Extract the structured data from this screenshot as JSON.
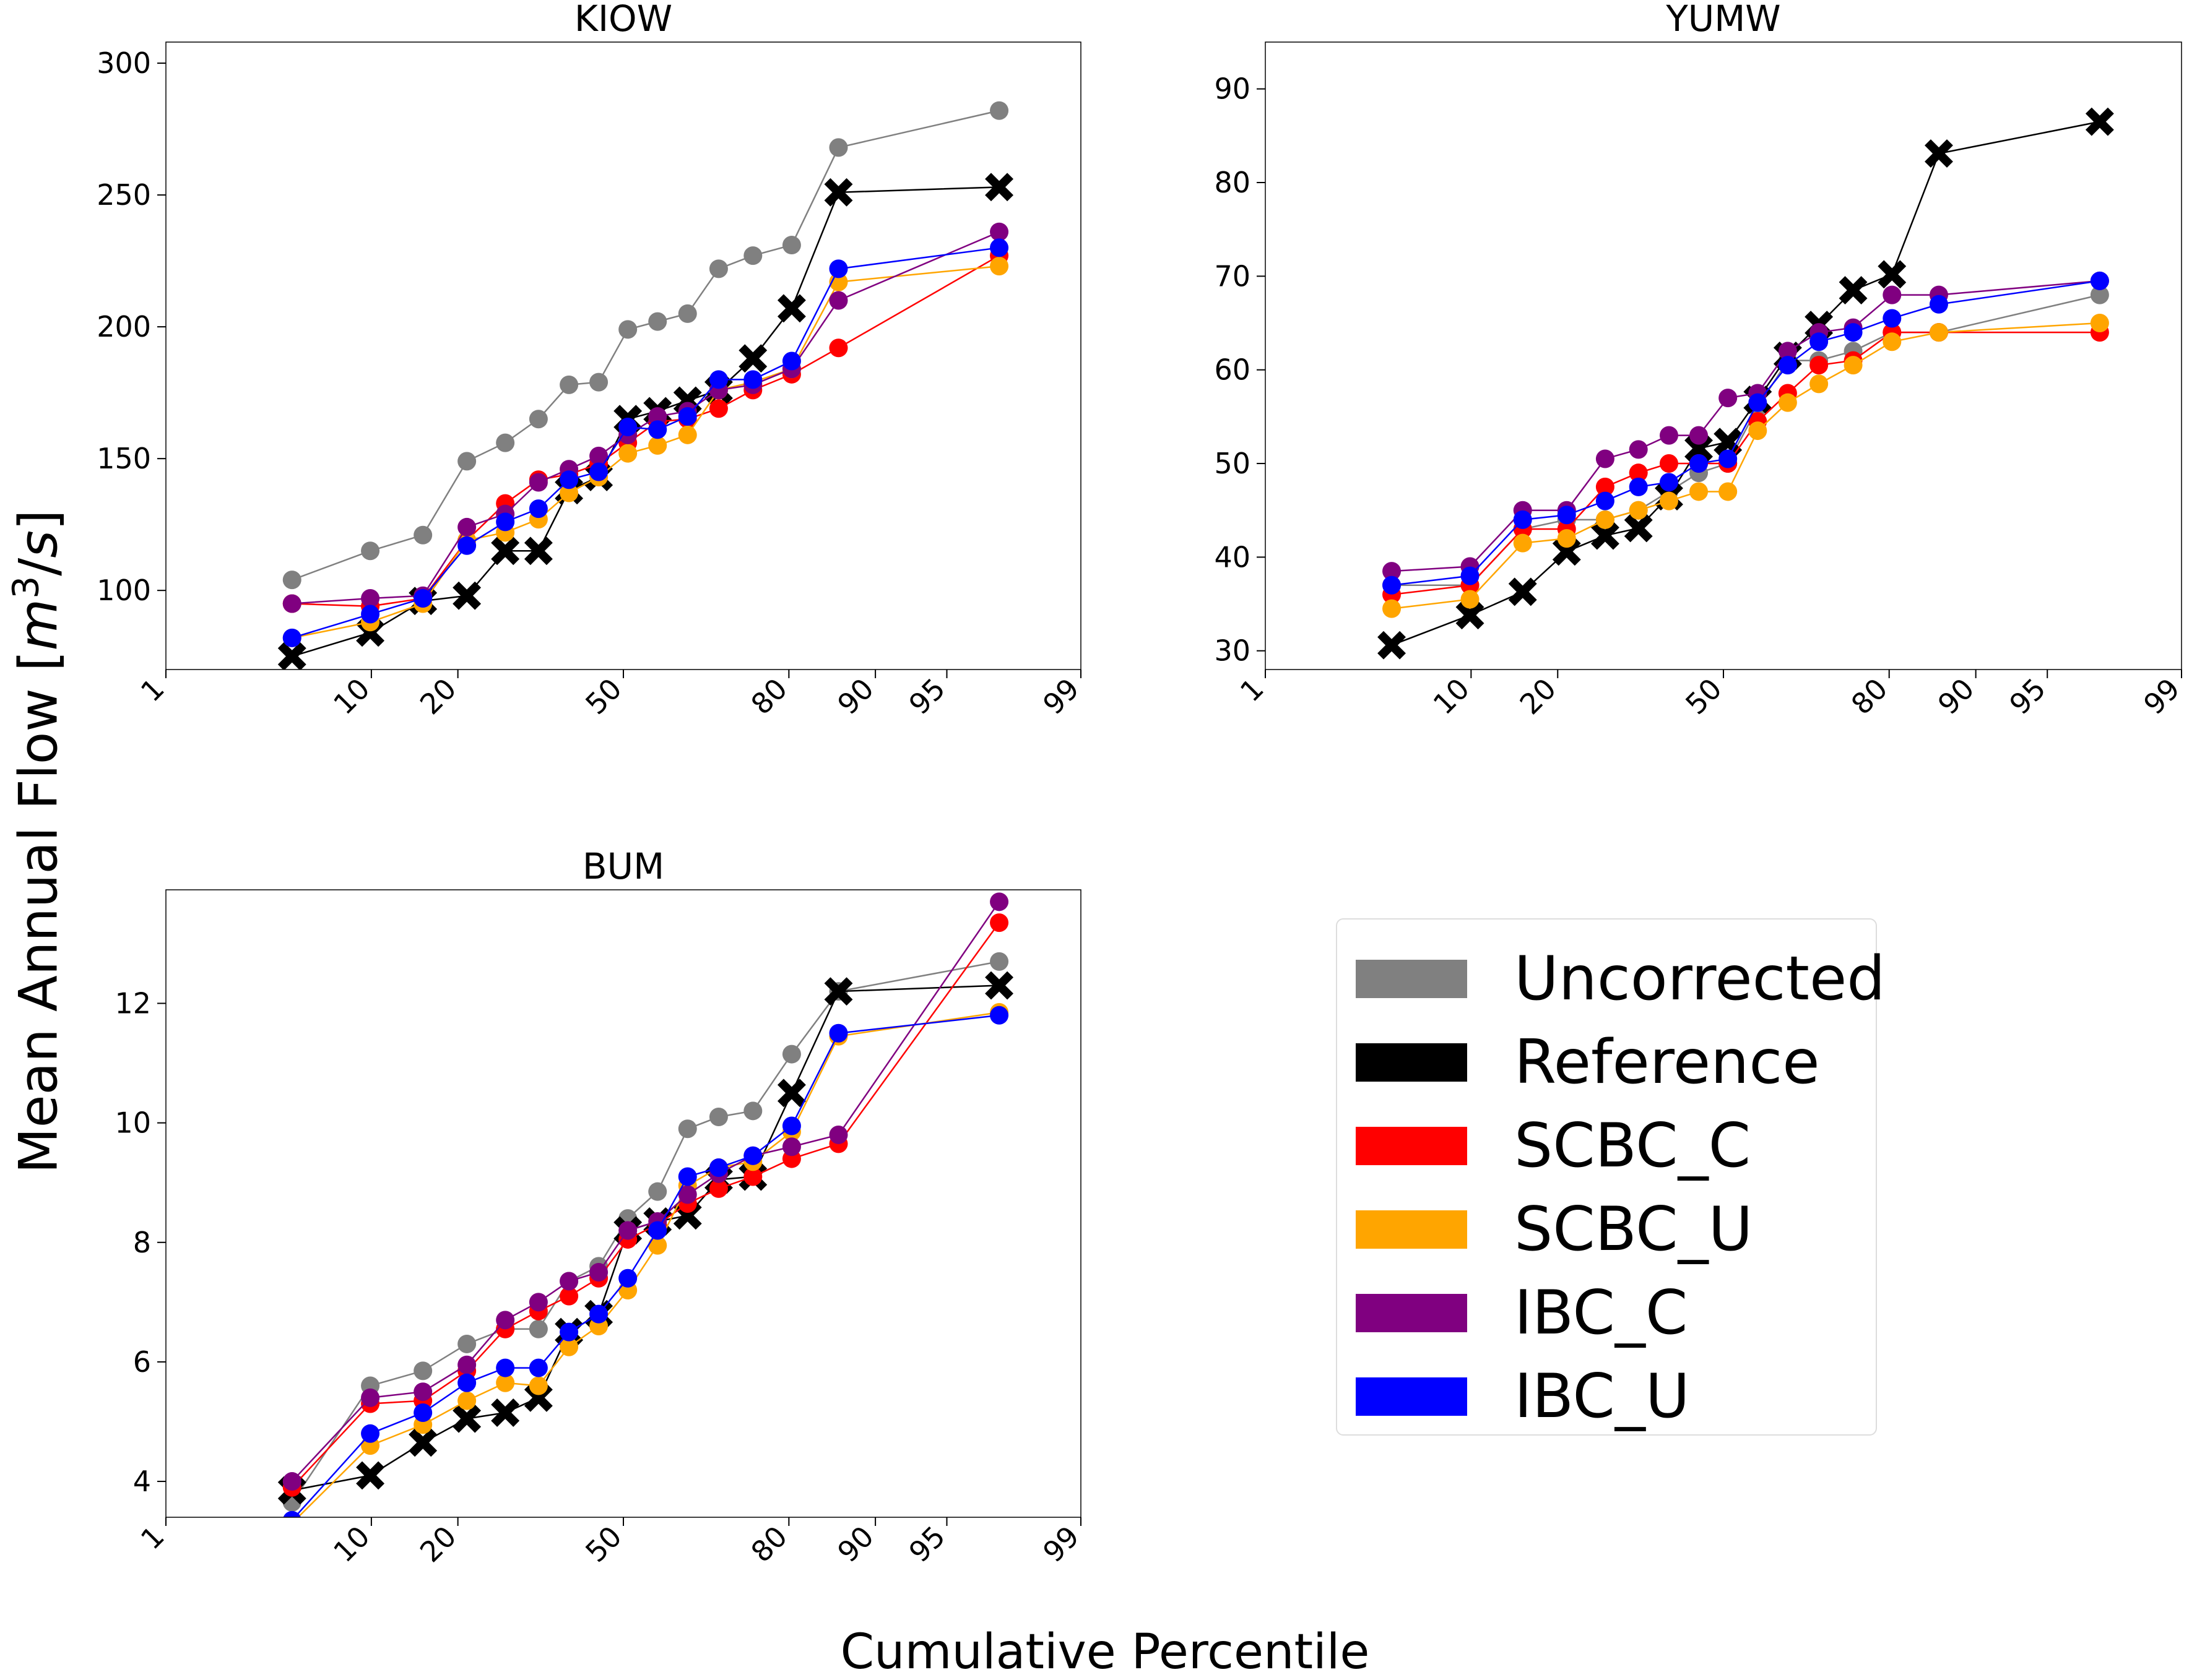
{
  "figure": {
    "xlabel": "Cumulative Percentile",
    "ylabel_main": "Mean Annual Flow [",
    "ylabel_m": "m",
    "ylabel_exp": "3",
    "ylabel_tail": "/",
    "ylabel_s": "s",
    "ylabel_end": "]"
  },
  "legend": {
    "placement": "lower-right",
    "items": [
      {
        "label": "Uncorrected",
        "color": "#808080"
      },
      {
        "label": "Reference",
        "color": "#000000"
      },
      {
        "label": "SCBC_C",
        "color": "#ff0000"
      },
      {
        "label": "SCBC_U",
        "color": "#ffa500"
      },
      {
        "label": "IBC_C",
        "color": "#800080"
      },
      {
        "label": "IBC_U",
        "color": "#0000ff"
      }
    ]
  },
  "chart_data": [
    {
      "type": "line",
      "title": "KIOW",
      "x_scale": "normal-probability",
      "xlim": [
        1,
        99
      ],
      "xticks": [
        1,
        10,
        20,
        50,
        80,
        90,
        95,
        99
      ],
      "xtick_labels": [
        "1",
        "10",
        "20",
        "50",
        "80",
        "90",
        "95",
        "99"
      ],
      "ylim": [
        70,
        308
      ],
      "yticks": [
        100,
        150,
        200,
        250,
        300
      ],
      "ytick_labels": [
        "100",
        "150",
        "200",
        "250",
        "300"
      ],
      "x": [
        4.6,
        9.9,
        15.4,
        21.3,
        27.4,
        33.3,
        39.1,
        45.0,
        50.9,
        56.9,
        62.8,
        68.6,
        74.5,
        80.4,
        86.3,
        92.1,
        97.2
      ],
      "series": [
        {
          "name": "Uncorrected",
          "color": "#808080",
          "marker": "o",
          "values": [
            104,
            115,
            121,
            149,
            156,
            165,
            178,
            179,
            199,
            202,
            205,
            222,
            227,
            231,
            268,
            null,
            282
          ]
        },
        {
          "name": "Reference",
          "color": "#000000",
          "marker": "x",
          "values": [
            75,
            84,
            96,
            98,
            115,
            115,
            138,
            143,
            165,
            168,
            172,
            176,
            188,
            207,
            251,
            null,
            253
          ]
        },
        {
          "name": "SCBC_C",
          "color": "#ff0000",
          "marker": "o",
          "values": [
            95,
            94,
            97,
            119,
            133,
            142,
            144,
            148,
            156,
            164,
            165,
            169,
            176,
            182,
            192,
            null,
            227
          ]
        },
        {
          "name": "SCBC_U",
          "color": "#ffa500",
          "marker": "o",
          "values": [
            82,
            88,
            95,
            119,
            122,
            127,
            137,
            143,
            152,
            155,
            159,
            176,
            179,
            184,
            217,
            null,
            223
          ]
        },
        {
          "name": "IBC_C",
          "color": "#800080",
          "marker": "o",
          "values": [
            95,
            97,
            98,
            124,
            129,
            141,
            146,
            151,
            159,
            166,
            168,
            176,
            178,
            184,
            210,
            null,
            236
          ]
        },
        {
          "name": "IBC_U",
          "color": "#0000ff",
          "marker": "o",
          "values": [
            82,
            91,
            97,
            117,
            126,
            131,
            142,
            145,
            162,
            161,
            166,
            180,
            180,
            187,
            222,
            null,
            230
          ]
        }
      ]
    },
    {
      "type": "line",
      "title": "YUMW",
      "x_scale": "normal-probability",
      "xlim": [
        1,
        99
      ],
      "xticks": [
        1,
        10,
        20,
        50,
        80,
        90,
        95,
        99
      ],
      "xtick_labels": [
        "1",
        "10",
        "20",
        "50",
        "80",
        "90",
        "95",
        "99"
      ],
      "ylim": [
        28,
        95
      ],
      "yticks": [
        30,
        40,
        50,
        60,
        70,
        80,
        90
      ],
      "ytick_labels": [
        "30",
        "40",
        "50",
        "60",
        "70",
        "80",
        "90"
      ],
      "x": [
        4.6,
        9.9,
        15.4,
        21.3,
        27.4,
        33.3,
        39.1,
        45.0,
        50.9,
        56.9,
        62.8,
        68.6,
        74.5,
        80.4,
        86.3,
        92.1,
        97.2
      ],
      "series": [
        {
          "name": "Uncorrected",
          "color": "#808080",
          "marker": "o",
          "values": [
            37,
            37,
            43,
            44,
            44,
            45,
            47,
            49,
            50,
            56,
            61,
            61,
            62,
            64,
            64,
            null,
            68
          ]
        },
        {
          "name": "Reference",
          "color": "#000000",
          "marker": "x",
          "values": [
            30.6,
            33.8,
            36.3,
            40.6,
            42.3,
            43.1,
            46.5,
            51.6,
            52.3,
            56.8,
            61.5,
            64.8,
            68.5,
            70.2,
            83.1,
            null,
            86.5
          ]
        },
        {
          "name": "SCBC_C",
          "color": "#ff0000",
          "marker": "o",
          "values": [
            36,
            37,
            43,
            43,
            47.5,
            49,
            50,
            50,
            50,
            54.5,
            57.5,
            60.5,
            61,
            64,
            64,
            null,
            64
          ]
        },
        {
          "name": "SCBC_U",
          "color": "#ffa500",
          "marker": "o",
          "values": [
            34.5,
            35.5,
            41.5,
            42,
            44,
            45,
            46,
            47,
            47,
            53.5,
            56.5,
            58.5,
            60.5,
            63,
            64,
            null,
            65
          ]
        },
        {
          "name": "IBC_C",
          "color": "#800080",
          "marker": "o",
          "values": [
            38.5,
            39,
            45,
            45,
            50.5,
            51.5,
            53,
            53,
            57,
            57.5,
            62,
            64,
            64.5,
            68,
            68,
            null,
            69.5
          ]
        },
        {
          "name": "IBC_U",
          "color": "#0000ff",
          "marker": "o",
          "values": [
            37,
            38,
            44,
            44.5,
            46,
            47.5,
            48,
            50,
            50.5,
            56.5,
            60.5,
            63,
            64,
            65.5,
            67,
            null,
            69.5
          ]
        }
      ]
    },
    {
      "type": "line",
      "title": "BUM",
      "x_scale": "normal-probability",
      "xlim": [
        1,
        99
      ],
      "xticks": [
        1,
        10,
        20,
        50,
        80,
        90,
        95,
        99
      ],
      "xtick_labels": [
        "1",
        "10",
        "20",
        "50",
        "80",
        "90",
        "95",
        "99"
      ],
      "ylim": [
        3.4,
        13.9
      ],
      "yticks": [
        4,
        6,
        8,
        10,
        12
      ],
      "ytick_labels": [
        "4",
        "6",
        "8",
        "10",
        "12"
      ],
      "x": [
        4.6,
        9.9,
        15.4,
        21.3,
        27.4,
        33.3,
        39.1,
        45.0,
        50.9,
        56.9,
        62.8,
        68.6,
        74.5,
        80.4,
        86.3,
        92.1,
        97.2
      ],
      "series": [
        {
          "name": "Uncorrected",
          "color": "#808080",
          "marker": "o",
          "values": [
            3.65,
            5.6,
            5.85,
            6.3,
            6.55,
            6.55,
            7.35,
            7.6,
            8.4,
            8.85,
            9.9,
            10.1,
            10.2,
            11.15,
            12.2,
            null,
            12.7
          ]
        },
        {
          "name": "Reference",
          "color": "#000000",
          "marker": "x",
          "values": [
            3.85,
            4.1,
            4.65,
            5.05,
            5.15,
            5.4,
            6.5,
            6.8,
            8.2,
            8.35,
            8.45,
            9.05,
            9.1,
            10.5,
            12.2,
            null,
            12.3
          ]
        },
        {
          "name": "SCBC_C",
          "color": "#ff0000",
          "marker": "o",
          "values": [
            3.9,
            5.3,
            5.35,
            5.85,
            6.55,
            6.85,
            7.1,
            7.4,
            8.05,
            8.3,
            8.65,
            8.9,
            9.1,
            9.4,
            9.65,
            null,
            13.35
          ]
        },
        {
          "name": "SCBC_U",
          "color": "#ffa500",
          "marker": "o",
          "values": [
            3.3,
            4.6,
            4.95,
            5.35,
            5.65,
            5.6,
            6.25,
            6.6,
            7.2,
            7.95,
            8.95,
            9.25,
            9.35,
            9.85,
            11.45,
            null,
            11.85
          ]
        },
        {
          "name": "IBC_C",
          "color": "#800080",
          "marker": "o",
          "values": [
            4.0,
            5.4,
            5.5,
            5.95,
            6.7,
            7.0,
            7.35,
            7.5,
            8.2,
            8.35,
            8.8,
            9.15,
            9.45,
            9.6,
            9.8,
            null,
            13.7
          ]
        },
        {
          "name": "IBC_U",
          "color": "#0000ff",
          "marker": "o",
          "values": [
            3.35,
            4.8,
            5.15,
            5.65,
            5.9,
            5.9,
            6.5,
            6.8,
            7.4,
            8.2,
            9.1,
            9.25,
            9.45,
            9.95,
            11.5,
            null,
            11.8
          ]
        }
      ]
    }
  ]
}
